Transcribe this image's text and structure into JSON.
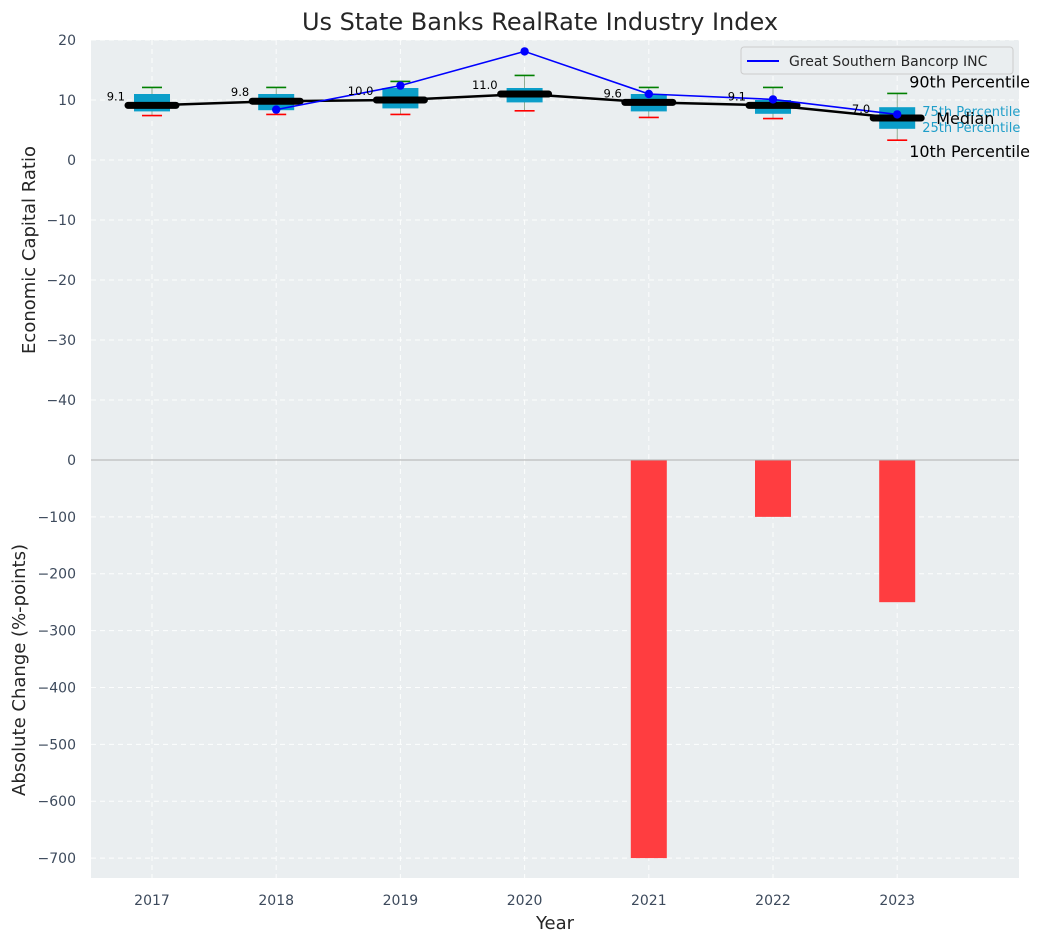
{
  "chart_data": [
    {
      "type": "box",
      "title": "Us State Banks RealRate Industry Index",
      "ylabel": "Economic Capital Ratio",
      "ylim": [
        -50,
        20
      ],
      "yticks": [
        20,
        10,
        0,
        -10,
        -20,
        -30,
        -40
      ],
      "categories": [
        "2017",
        "2018",
        "2019",
        "2020",
        "2021",
        "2022",
        "2023"
      ],
      "percentiles": {
        "p10": [
          7.4,
          7.6,
          7.6,
          8.2,
          7.1,
          6.9,
          3.3
        ],
        "p25": [
          8.1,
          8.3,
          8.6,
          9.6,
          8.1,
          7.7,
          5.2
        ],
        "median": [
          9.1,
          9.8,
          10.0,
          11.0,
          9.6,
          9.1,
          7.0
        ],
        "p75": [
          11.0,
          11.0,
          12.0,
          12.0,
          11.0,
          10.0,
          8.8
        ],
        "p90": [
          12.1,
          12.1,
          13.1,
          14.1,
          12.1,
          12.1,
          11.1
        ]
      },
      "median_labels": [
        "9.1",
        "9.8",
        "10.0",
        "11.0",
        "9.6",
        "9.1",
        "7.0"
      ],
      "series": [
        {
          "name": "Great Southern Bancorp INC",
          "color": "#0000ff",
          "x": [
            "2018",
            "2019",
            "2020",
            "2021",
            "2022",
            "2023"
          ],
          "values": [
            8.4,
            12.4,
            18.1,
            11.0,
            10.1,
            7.6
          ]
        }
      ],
      "legend": "top-right",
      "annotations": {
        "p90": "90th Percentile",
        "p75": "75th Percentile",
        "median": "Median",
        "p25": "25th Percentile",
        "p10": "10th Percentile"
      },
      "colors": {
        "box": "#0b9ec9",
        "median": "#000000",
        "p90_whisker": "#008000",
        "p10_whisker": "#ff0000",
        "background": "#eaeef0"
      },
      "grid": true
    },
    {
      "type": "bar",
      "xlabel": "Year",
      "ylabel": "Absolute Change (%-points)",
      "ylim": [
        -735,
        0
      ],
      "yticks": [
        0,
        -100,
        -200,
        -300,
        -400,
        -500,
        -600,
        -700
      ],
      "categories": [
        "2017",
        "2018",
        "2019",
        "2020",
        "2021",
        "2022",
        "2023"
      ],
      "values": [
        0,
        0,
        0,
        0,
        -700,
        -100,
        -250
      ],
      "colors": {
        "bar": "#ff3d40",
        "background": "#eaeef0"
      },
      "grid": true
    }
  ]
}
